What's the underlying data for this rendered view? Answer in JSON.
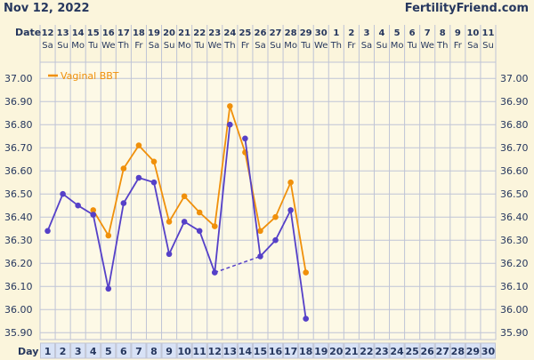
{
  "header": {
    "date": "Nov 12, 2022",
    "site": "FertilityFriend.com"
  },
  "labels": {
    "date_row": "Date",
    "day_row": "Day"
  },
  "colors": {
    "background": "#fbf5dc",
    "grid": "#bfc4d6",
    "text": "#26375e",
    "vaginal": "#f0900a",
    "other": "#5540c8"
  },
  "chart_data": {
    "type": "line",
    "x_dates": [
      "12",
      "13",
      "14",
      "15",
      "16",
      "17",
      "18",
      "19",
      "20",
      "21",
      "22",
      "23",
      "24",
      "25",
      "26",
      "27",
      "28",
      "29",
      "30",
      "1",
      "2",
      "3",
      "4",
      "5",
      "6",
      "7",
      "8",
      "9",
      "10",
      "11"
    ],
    "x_weekdays": [
      "Sa",
      "Su",
      "Mo",
      "Tu",
      "We",
      "Th",
      "Fr",
      "Sa",
      "Su",
      "Mo",
      "Tu",
      "We",
      "Th",
      "Fr",
      "Sa",
      "Su",
      "Mo",
      "Tu",
      "We",
      "Th",
      "Fr",
      "Sa",
      "Su",
      "Mo",
      "Tu",
      "We",
      "Th",
      "Fr",
      "Sa",
      "Su"
    ],
    "x_days": [
      "1",
      "2",
      "3",
      "4",
      "5",
      "6",
      "7",
      "8",
      "9",
      "10",
      "11",
      "12",
      "13",
      "14",
      "15",
      "16",
      "17",
      "18",
      "19",
      "20",
      "21",
      "22",
      "23",
      "24",
      "25",
      "26",
      "27",
      "28",
      "29",
      "30"
    ],
    "y_ticks": [
      "37.00",
      "36.90",
      "36.80",
      "36.70",
      "36.60",
      "36.50",
      "36.40",
      "36.30",
      "36.20",
      "36.10",
      "36.00",
      "35.90"
    ],
    "ylim": [
      35.87,
      37.07
    ],
    "legend": "Vaginal BBT",
    "legend_position": "top-left",
    "series": [
      {
        "name": "Vaginal BBT",
        "color": "#f0900a",
        "points": [
          [
            4,
            36.43
          ],
          [
            5,
            36.32
          ],
          [
            6,
            36.61
          ],
          [
            7,
            36.71
          ],
          [
            8,
            36.64
          ],
          [
            9,
            36.38
          ],
          [
            10,
            36.49
          ],
          [
            11,
            36.42
          ],
          [
            12,
            36.36
          ],
          [
            13,
            36.88
          ],
          [
            14,
            36.68
          ],
          [
            15,
            36.34
          ],
          [
            16,
            36.4
          ],
          [
            17,
            36.55
          ],
          [
            18,
            36.16
          ]
        ]
      },
      {
        "color": "#5540c8",
        "points": [
          [
            1,
            36.34
          ],
          [
            2,
            36.5
          ],
          [
            3,
            36.45
          ],
          [
            4,
            36.41
          ],
          [
            5,
            36.09
          ],
          [
            6,
            36.46
          ],
          [
            7,
            36.57
          ],
          [
            8,
            36.55
          ],
          [
            9,
            36.24
          ],
          [
            10,
            36.38
          ],
          [
            11,
            36.34
          ],
          [
            12,
            36.16
          ],
          [
            13,
            36.8
          ],
          [
            14,
            36.74
          ],
          [
            15,
            36.23
          ],
          [
            16,
            36.3
          ],
          [
            17,
            36.43
          ],
          [
            18,
            35.96
          ]
        ],
        "breaks_after_day": [
          13
        ],
        "dashed_segments": [
          [
            12,
            15
          ]
        ]
      }
    ]
  }
}
